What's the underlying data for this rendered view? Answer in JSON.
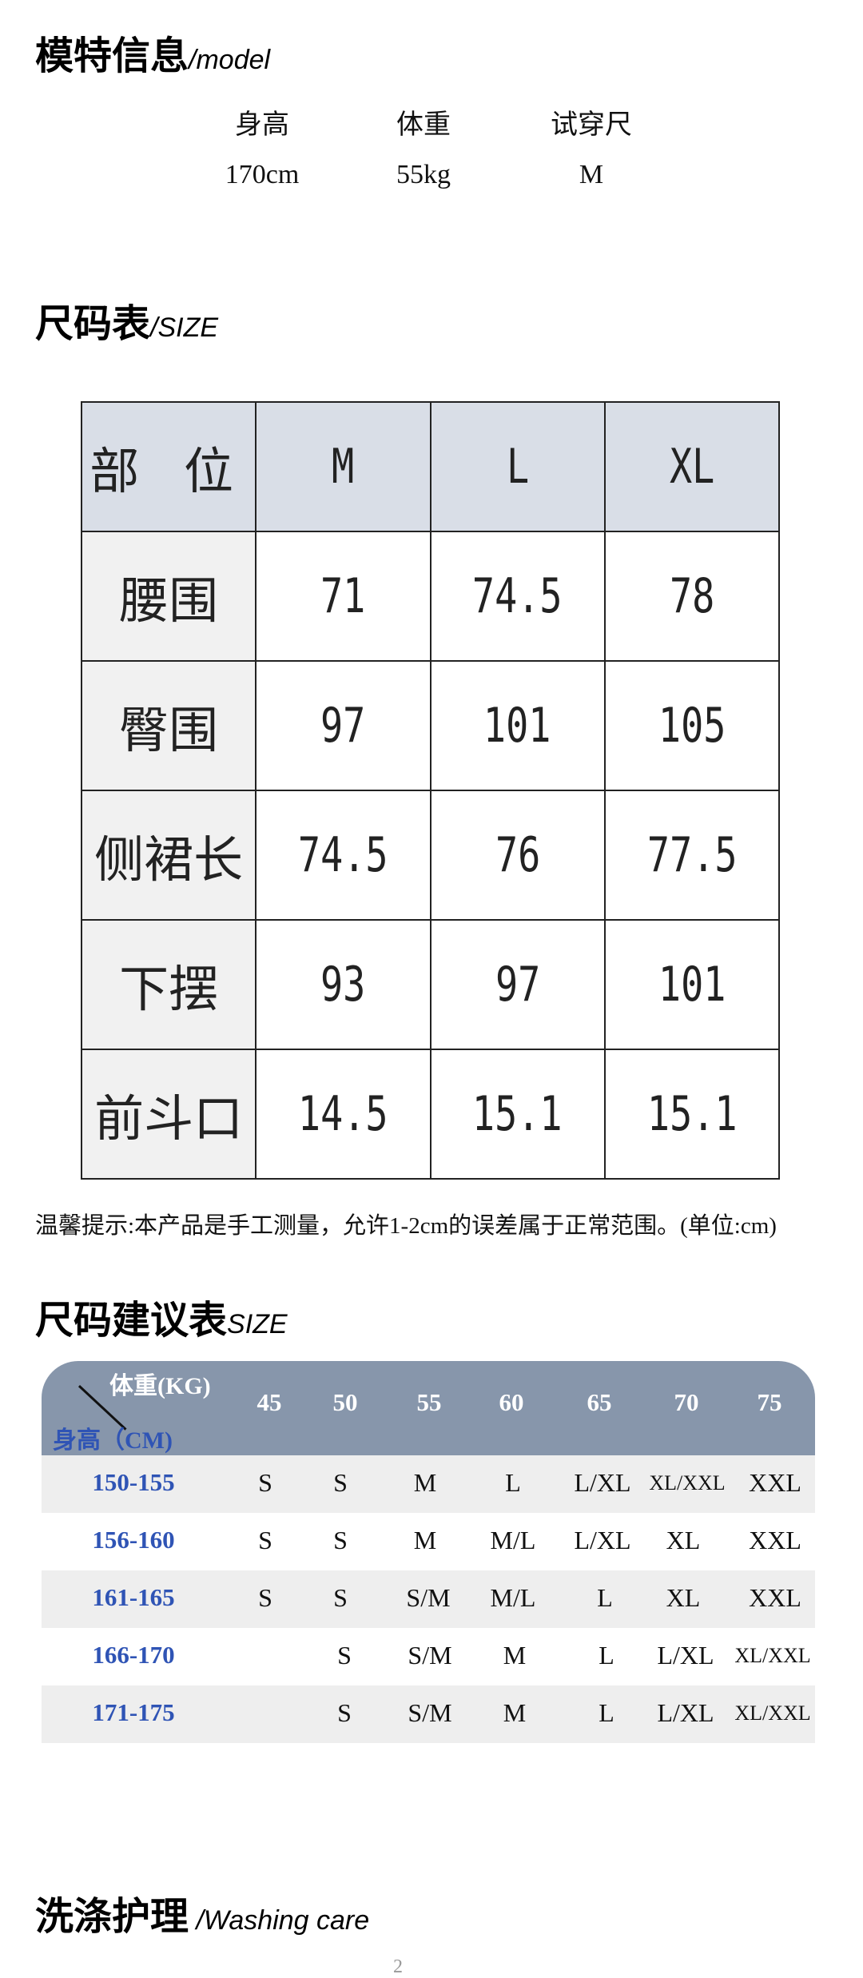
{
  "model": {
    "title": "模特信息",
    "title_en": "/model",
    "labels": [
      "身高",
      "体重",
      "试穿尺"
    ],
    "values": [
      "170cm",
      "55kg",
      "M"
    ]
  },
  "size_chart": {
    "title": "尺码表",
    "title_en": "/SIZE",
    "header": [
      "部 位",
      "M",
      "L",
      "XL"
    ],
    "rows": [
      {
        "part": "腰围",
        "values": [
          "71",
          "74.5",
          "78"
        ]
      },
      {
        "part": "臀围",
        "values": [
          "97",
          "101",
          "105"
        ]
      },
      {
        "part": "侧裙长",
        "values": [
          "74.5",
          "76",
          "77.5"
        ]
      },
      {
        "part": "下摆",
        "values": [
          "93",
          "97",
          "101"
        ]
      },
      {
        "part": "前斗口",
        "values": [
          "14.5",
          "15.1",
          "15.1"
        ]
      }
    ]
  },
  "note": "温馨提示:本产品是手工测量，允许1-2cm的误差属于正常范围。(单位:cm)",
  "suggestion": {
    "title": "尺码建议表",
    "title_en": "SIZE",
    "weight_label": "体重(KG)",
    "height_label": "身高（CM)",
    "weights": [
      "45",
      "50",
      "55",
      "60",
      "65",
      "70",
      "75"
    ],
    "rows": [
      {
        "height": "150-155",
        "sizes": [
          "S",
          "S",
          "M",
          "L",
          "L/XL",
          "XL/XXL",
          "XXL"
        ]
      },
      {
        "height": "156-160",
        "sizes": [
          "S",
          "S",
          "M",
          "M/L",
          "L/XL",
          "XL",
          "XXL"
        ]
      },
      {
        "height": "161-165",
        "sizes": [
          "S",
          "S",
          "S/M",
          "M/L",
          "L",
          "XL",
          "XXL"
        ]
      },
      {
        "height": "166-170",
        "sizes": [
          "",
          "S",
          "S/M",
          "M",
          "L",
          "L/XL",
          "XL/XXL"
        ]
      },
      {
        "height": "171-175",
        "sizes": [
          "",
          "S",
          "S/M",
          "M",
          "L",
          "L/XL",
          "XL/XXL"
        ]
      }
    ]
  },
  "washing": {
    "title": "洗涤护理",
    "title_en": " /Washing care"
  },
  "page_mark": "2"
}
